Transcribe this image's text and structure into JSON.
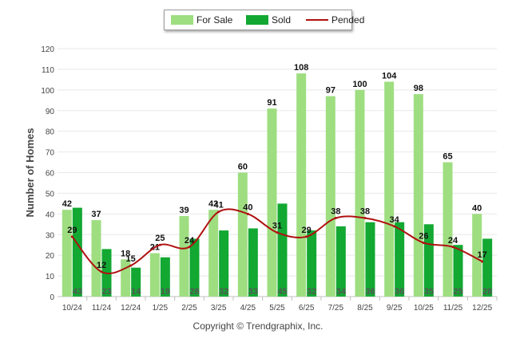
{
  "legend": {
    "for_sale": "For Sale",
    "sold": "Sold",
    "pended": "Pended"
  },
  "copyright": "Copyright © Trendgraphix, Inc.",
  "colors": {
    "for_sale": "#9ede81",
    "sold": "#12a832",
    "pended": "#b01010",
    "grid": "#e8e8e8",
    "axis": "#c0c0c0"
  },
  "chart_data": {
    "type": "bar",
    "title": "",
    "xlabel": "",
    "ylabel": "Number of Homes",
    "ylim": [
      0,
      120
    ],
    "yticks": [
      0,
      10,
      20,
      30,
      40,
      50,
      60,
      70,
      80,
      90,
      100,
      110,
      120
    ],
    "grid": true,
    "legend_position": "top-center",
    "categories": [
      "10/24",
      "11/24",
      "12/24",
      "1/25",
      "2/25",
      "3/25",
      "4/25",
      "5/25",
      "6/25",
      "7/25",
      "8/25",
      "9/25",
      "10/25",
      "11/25",
      "12/25"
    ],
    "series": [
      {
        "name": "For Sale",
        "kind": "bar",
        "values": [
          42,
          37,
          18,
          21,
          39,
          42,
          60,
          91,
          108,
          97,
          100,
          104,
          98,
          65,
          40
        ]
      },
      {
        "name": "Sold",
        "kind": "bar",
        "values": [
          43,
          23,
          14,
          19,
          28,
          32,
          33,
          45,
          32,
          34,
          36,
          36,
          35,
          25,
          28
        ]
      },
      {
        "name": "Pended",
        "kind": "line",
        "values": [
          29,
          12,
          15,
          25,
          24,
          41,
          40,
          31,
          29,
          38,
          38,
          34,
          26,
          24,
          17
        ]
      }
    ]
  }
}
